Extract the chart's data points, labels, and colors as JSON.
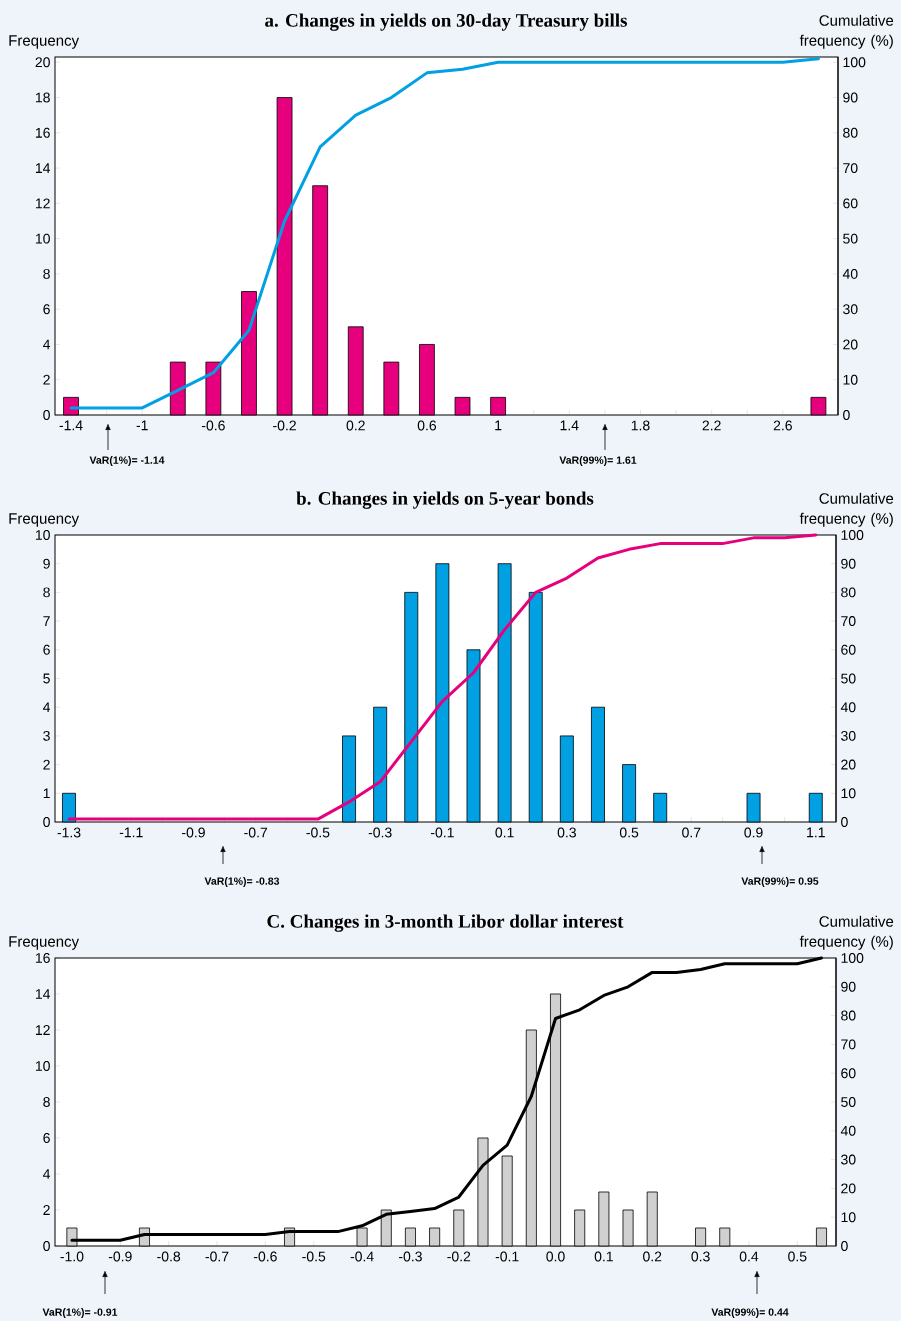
{
  "chart_data": [
    {
      "type": "bar",
      "title": "a. Changes in yields on 30-day Treasury bills",
      "ylabel": "Frequency",
      "y2label": "Cumulative frequency (%)",
      "x": [
        -1.4,
        -0.8,
        -0.6,
        -0.4,
        -0.2,
        0,
        0.2,
        0.4,
        0.6,
        0.8,
        1.0,
        2.8
      ],
      "series": [
        {
          "type": "bar",
          "color": "#e6007e",
          "values": [
            1,
            3,
            3,
            7,
            18,
            13,
            5,
            3,
            4,
            1,
            1,
            1
          ]
        },
        {
          "type": "line",
          "axis": "y2",
          "color": "#00a0e3",
          "x": [
            -1.4,
            -1.0,
            -0.8,
            -0.6,
            -0.4,
            -0.2,
            0,
            0.2,
            0.4,
            0.6,
            0.8,
            1.0,
            2.6,
            2.8
          ],
          "values": [
            2,
            2,
            7,
            12,
            24,
            55,
            76,
            85,
            90,
            97,
            98,
            100,
            100,
            101
          ]
        }
      ],
      "xlim": [
        -1.49,
        2.91
      ],
      "xticks": [
        -1.4,
        {
          "value": -1.2,
          "label": null
        },
        -1,
        {
          "value": -0.8,
          "label": null
        },
        -0.6,
        {
          "value": -0.4,
          "label": null
        },
        -0.2,
        {
          "value": 0,
          "label": null
        },
        0.2,
        {
          "value": 0.4,
          "label": null
        },
        0.6,
        {
          "value": 0.8,
          "label": null
        },
        1,
        {
          "value": 1.2,
          "label": null
        },
        1.4,
        {
          "value": 1.6,
          "label": null
        },
        1.8,
        {
          "value": 2.0,
          "label": null
        },
        2.2,
        {
          "value": 2.4,
          "label": null
        },
        2.6,
        {
          "value": 2.8,
          "label": null
        }
      ],
      "ylim": [
        0,
        20.3
      ],
      "yticks": [
        0,
        2,
        4,
        6,
        8,
        10,
        12,
        14,
        16,
        18,
        20
      ],
      "y2lim": [
        0,
        101.5
      ],
      "y2ticks": [
        0,
        10,
        20,
        30,
        40,
        50,
        60,
        70,
        80,
        90,
        100
      ],
      "annotations": [
        "VaR(1%)= -1.14",
        "VaR(99%)= 1.61"
      ]
    },
    {
      "type": "bar",
      "title": "b. Changes in yields on 5-year bonds",
      "ylabel": "Frequency",
      "y2label": "Cumulative frequency (%)",
      "x": [
        -1.3,
        -0.4,
        -0.3,
        -0.2,
        -0.1,
        0,
        0.1,
        0.2,
        0.3,
        0.4,
        0.5,
        0.6,
        0.9,
        1.1
      ],
      "series": [
        {
          "type": "bar",
          "color": "#00a0e3",
          "values": [
            1,
            3,
            4,
            8,
            9,
            6,
            9,
            8,
            3,
            4,
            2,
            1,
            1,
            1
          ]
        },
        {
          "type": "line",
          "axis": "y2",
          "color": "#e6007e",
          "x": [
            -1.3,
            -0.5,
            -0.4,
            -0.3,
            -0.2,
            -0.1,
            0,
            0.1,
            0.2,
            0.3,
            0.4,
            0.5,
            0.6,
            0.8,
            0.9,
            1.0,
            1.1
          ],
          "values": [
            1,
            1,
            7,
            14,
            28,
            42,
            52,
            67,
            80,
            85,
            92,
            95,
            97,
            97,
            99,
            99,
            100
          ]
        }
      ],
      "xlim": [
        -1.345,
        1.165
      ],
      "xticks": [
        -1.3,
        {
          "value": -1.2,
          "label": null
        },
        -1.1,
        {
          "value": -1.0,
          "label": null
        },
        -0.9,
        {
          "value": -0.8,
          "label": null
        },
        -0.7,
        {
          "value": -0.6,
          "label": null
        },
        -0.5,
        {
          "value": -0.4,
          "label": null
        },
        -0.3,
        {
          "value": -0.2,
          "label": null
        },
        -0.1,
        {
          "value": 0,
          "label": null
        },
        0.1,
        {
          "value": 0.2,
          "label": null
        },
        0.3,
        {
          "value": 0.4,
          "label": null
        },
        0.5,
        {
          "value": 0.6,
          "label": null
        },
        0.7,
        {
          "value": 0.8,
          "label": null
        },
        0.9,
        {
          "value": 1.0,
          "label": null
        },
        1.1
      ],
      "ylim": [
        0,
        10
      ],
      "yticks": [
        0,
        1,
        2,
        3,
        4,
        5,
        6,
        7,
        8,
        9,
        10
      ],
      "y2lim": [
        0,
        100
      ],
      "y2ticks": [
        0,
        10,
        20,
        30,
        40,
        50,
        60,
        70,
        80,
        90,
        100
      ],
      "annotations": [
        "VaR(1%)= -0.83",
        "VaR(99%)= 0.95"
      ]
    },
    {
      "type": "bar",
      "title": "C. Changes in 3-month Libor dollar interest",
      "ylabel": "Frequency",
      "y2label": "Cumulative frequency (%)",
      "x": [
        -1.0,
        -0.85,
        -0.55,
        -0.4,
        -0.35,
        -0.3,
        -0.25,
        -0.2,
        -0.15,
        -0.1,
        -0.05,
        0,
        0.05,
        0.1,
        0.15,
        0.2,
        0.3,
        0.35,
        0.55
      ],
      "series": [
        {
          "type": "bar",
          "color": "#d0d0d0",
          "values": [
            1,
            1,
            1,
            1,
            2,
            1,
            1,
            2,
            6,
            5,
            12,
            14,
            2,
            3,
            2,
            3,
            1,
            1,
            1
          ]
        },
        {
          "type": "line",
          "axis": "y2",
          "color": "#000000",
          "x": [
            -1.0,
            -0.9,
            -0.85,
            -0.6,
            -0.55,
            -0.45,
            -0.4,
            -0.35,
            -0.3,
            -0.25,
            -0.2,
            -0.15,
            -0.1,
            -0.05,
            0,
            0.05,
            0.1,
            0.15,
            0.2,
            0.25,
            0.3,
            0.35,
            0.5,
            0.55
          ],
          "values": [
            2,
            2,
            4,
            4,
            5,
            5,
            7,
            11,
            12,
            13,
            17,
            28,
            35,
            52,
            79,
            82,
            87,
            90,
            95,
            95,
            96,
            98,
            98,
            100
          ]
        }
      ],
      "xlim": [
        -1.035,
        0.58
      ],
      "xticks": [
        {
          "value": -1.0,
          "label": "-1.0"
        },
        {
          "value": -0.9,
          "label": "-0.9"
        },
        {
          "value": -0.8,
          "label": "-0.8"
        },
        {
          "value": -0.7,
          "label": "-0.7"
        },
        {
          "value": -0.6,
          "label": "-0.6"
        },
        {
          "value": -0.5,
          "label": "-0.5"
        },
        {
          "value": -0.4,
          "label": "-0.4"
        },
        {
          "value": -0.3,
          "label": "-0.3"
        },
        {
          "value": -0.2,
          "label": "-0.2"
        },
        {
          "value": -0.1,
          "label": "-0.1"
        },
        {
          "value": 0,
          "label": "0.0"
        },
        {
          "value": 0.1,
          "label": "0.1"
        },
        {
          "value": 0.2,
          "label": "0.2"
        },
        {
          "value": 0.3,
          "label": "0.3"
        },
        {
          "value": 0.4,
          "label": "0.4"
        },
        {
          "value": 0.5,
          "label": "0.5"
        }
      ],
      "ylim": [
        0,
        16
      ],
      "yticks": [
        0,
        2,
        4,
        6,
        8,
        10,
        12,
        14,
        16
      ],
      "y2lim": [
        0,
        100
      ],
      "y2ticks": [
        0,
        10,
        20,
        30,
        40,
        50,
        60,
        70,
        80,
        90,
        100
      ],
      "annotations": [
        "VaR(1%)= -0.91",
        "VaR(99%)= 0.44"
      ]
    }
  ]
}
